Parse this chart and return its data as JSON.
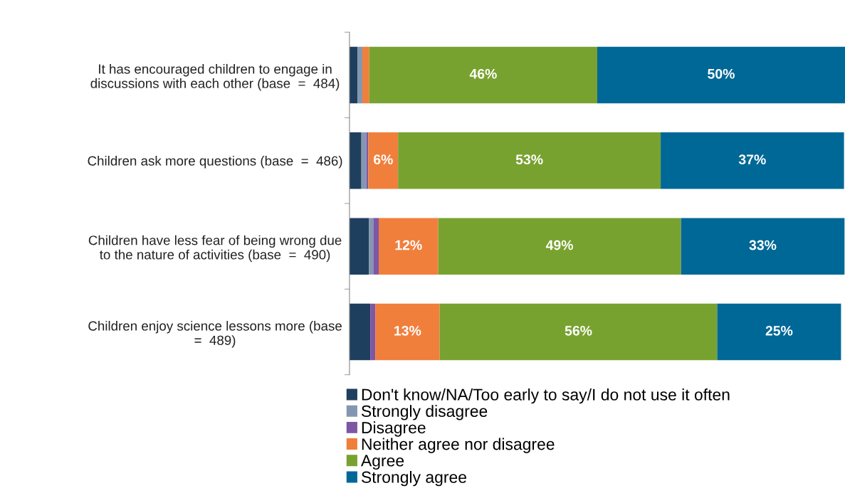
{
  "chart_data": {
    "type": "bar",
    "orientation": "horizontal",
    "stacked": true,
    "categories": [
      "It has encouraged children to engage in\ndiscussions with each other (base  =  484)",
      "Children ask more questions (base  =  486)",
      "Children have less fear of being wrong due\nto the nature of activities (base  =  490)",
      "Children enjoy science lessons more (base\n=  489)"
    ],
    "series": [
      {
        "name": "Don't know/NA/Too early to say/I do not use it often",
        "color": "#1f3f5e",
        "values": [
          1.6,
          2.4,
          3.9,
          4.2
        ]
      },
      {
        "name": "Strongly disagree",
        "color": "#8497b0",
        "values": [
          1.0,
          1.0,
          0.9,
          0
        ]
      },
      {
        "name": "Disagree",
        "color": "#7e57a4",
        "values": [
          0,
          0.4,
          1.1,
          1.0
        ]
      },
      {
        "name": "Neither agree nor disagree",
        "color": "#f07f3c",
        "values": [
          1.4,
          6,
          12,
          13
        ],
        "value_labels": [
          null,
          "6%",
          "12%",
          "13%"
        ]
      },
      {
        "name": "Agree",
        "color": "#78a22f",
        "values": [
          46,
          53,
          49,
          56
        ],
        "value_labels": [
          "46%",
          "53%",
          "49%",
          "56%"
        ]
      },
      {
        "name": "Strongly agree",
        "color": "#006896",
        "values": [
          50,
          37,
          33,
          25
        ],
        "value_labels": [
          "50%",
          "37%",
          "33%",
          "25%"
        ]
      }
    ],
    "xlim": [
      0,
      100
    ],
    "tick_labels": "y",
    "grid": false,
    "legend": "bottom"
  }
}
